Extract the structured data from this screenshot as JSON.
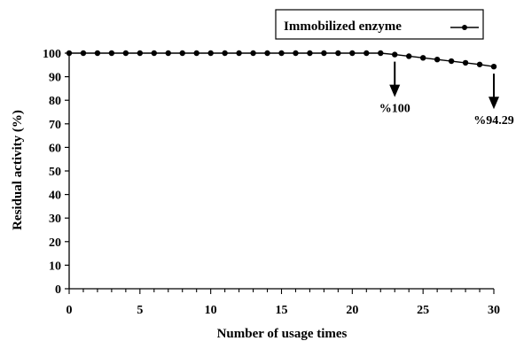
{
  "chart_data": {
    "type": "line",
    "xlabel": "Number of usage times",
    "ylabel": "Residual activity (%)",
    "xlim": [
      0,
      30
    ],
    "ylim": [
      0,
      100
    ],
    "xticks": [
      0,
      5,
      10,
      15,
      20,
      25,
      30
    ],
    "yticks": [
      0,
      10,
      20,
      30,
      40,
      50,
      60,
      70,
      80,
      90,
      100
    ],
    "grid": false,
    "legend_position": "top-right",
    "series": [
      {
        "name": "Immobilized enzyme",
        "color": "#000000",
        "marker": "circle",
        "x": [
          0,
          1,
          2,
          3,
          4,
          5,
          6,
          7,
          8,
          9,
          10,
          11,
          12,
          13,
          14,
          15,
          16,
          17,
          18,
          19,
          20,
          21,
          22,
          23,
          24,
          25,
          26,
          27,
          28,
          29,
          30
        ],
        "y": [
          100,
          100,
          100,
          100,
          100,
          100,
          100,
          100,
          100,
          100,
          100,
          100,
          100,
          100,
          100,
          100,
          100,
          100,
          100,
          100,
          100,
          100,
          100,
          99.4,
          98.7,
          98.0,
          97.3,
          96.6,
          95.9,
          95.2,
          94.29
        ]
      }
    ],
    "annotations": [
      {
        "text": "%100",
        "x": 23,
        "y": 99.4,
        "arrow": "down"
      },
      {
        "text": "%94.29",
        "x": 30,
        "y": 94.29,
        "arrow": "down"
      }
    ]
  }
}
